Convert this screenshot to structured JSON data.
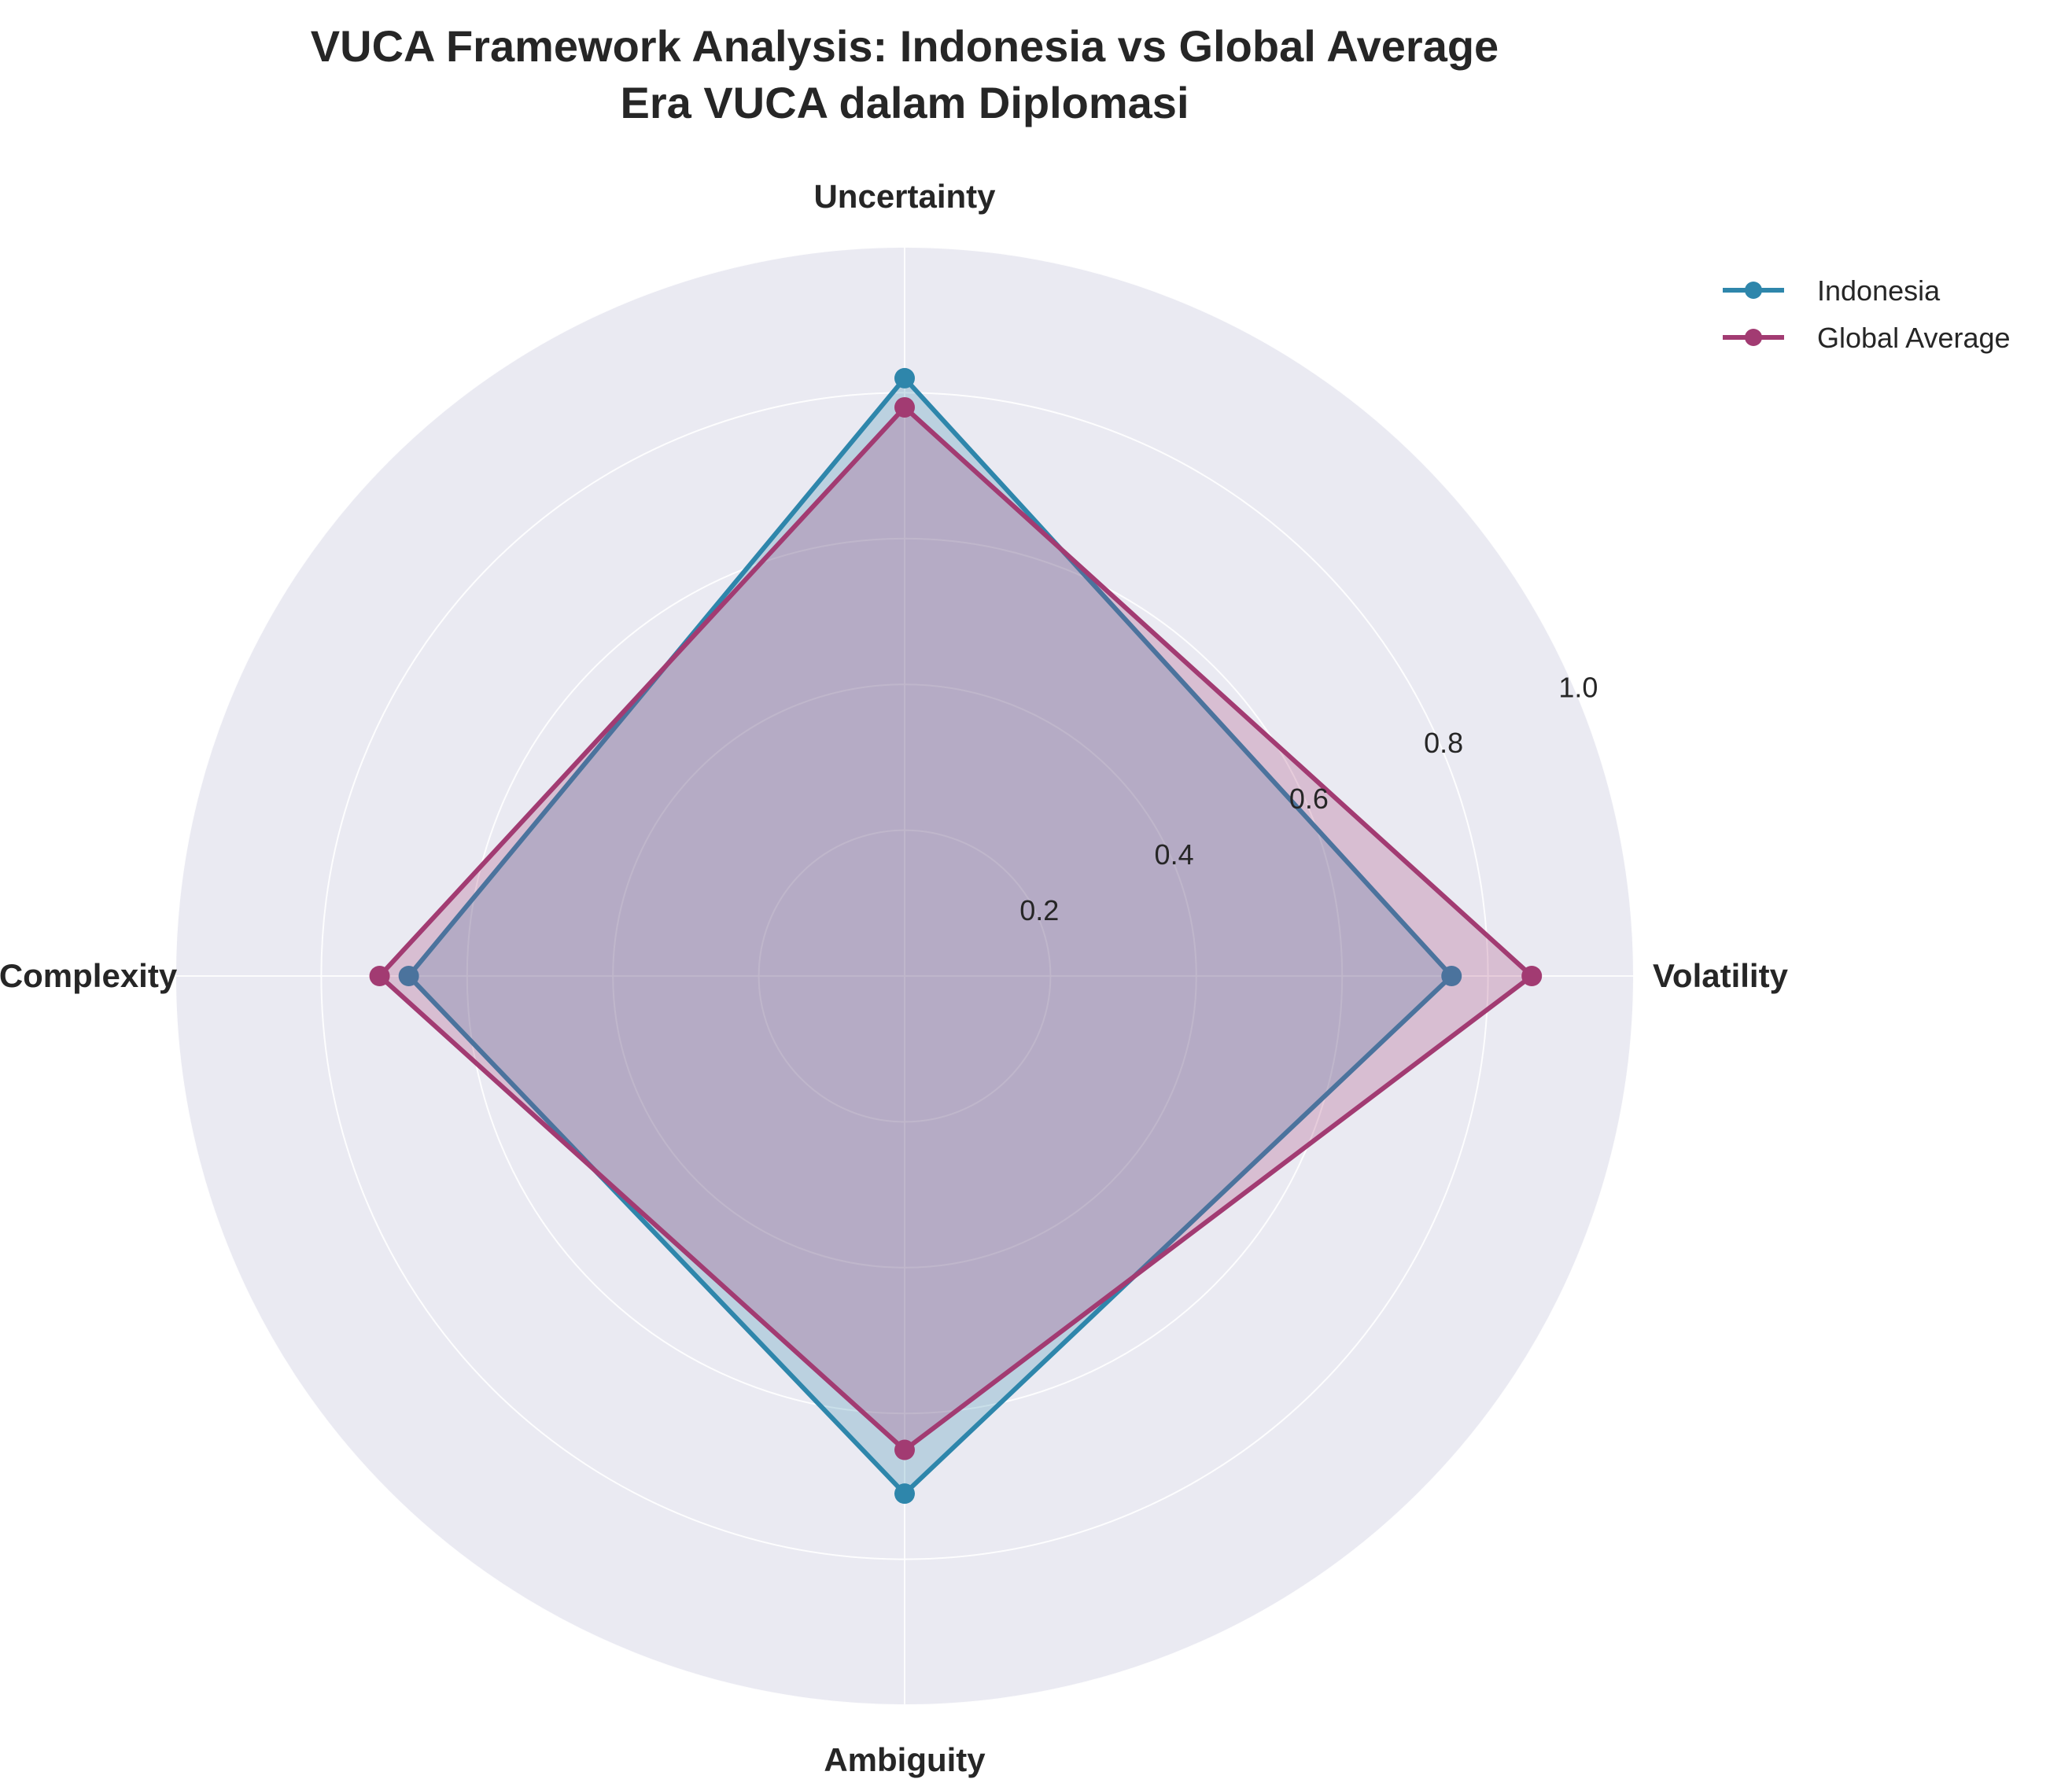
{
  "chart_data": {
    "type": "radar",
    "title_line1": "VUCA Framework Analysis: Indonesia vs Global Average",
    "title_line2": "Era VUCA dalam Diplomasi",
    "categories": [
      "Volatility",
      "Uncertainty",
      "Complexity",
      "Ambiguity"
    ],
    "rlim": [
      0,
      1.0
    ],
    "rticks": [
      0.2,
      0.4,
      0.6,
      0.8,
      1.0
    ],
    "rtick_labels": [
      "0.2",
      "0.4",
      "0.6",
      "0.8",
      "1.0"
    ],
    "grid": true,
    "legend_position": "top-right",
    "series": [
      {
        "name": "Indonesia",
        "values": [
          0.75,
          0.82,
          0.68,
          0.71
        ],
        "color": "#2e86ab"
      },
      {
        "name": "Global Average",
        "values": [
          0.86,
          0.78,
          0.72,
          0.65
        ],
        "color": "#a23b72"
      }
    ],
    "background_color": "#eaeaf2"
  }
}
